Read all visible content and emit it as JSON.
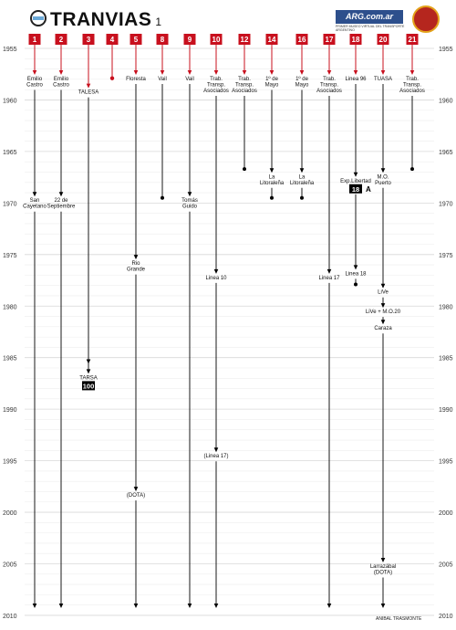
{
  "header": {
    "title": "TRANVIAS",
    "subtitle": "1",
    "brand_text": "ARG.com.ar",
    "brand_sub": "PRIMER MUSEO VIRTUAL DEL TRANSPORTE ARGENTINO",
    "logo_icon": "argentina-flag-roundel-icon",
    "seal_icon": "museum-seal-icon"
  },
  "footer": {
    "credit": "ANIBAL TRASMONTE"
  },
  "colors": {
    "badge": "#c8101e",
    "arrow": "#c8101e",
    "line": "#000000",
    "grid": "#d8d8d8"
  },
  "year_axis": {
    "start": 1955,
    "end": 2010,
    "labels": [
      "1955",
      "1960",
      "1965",
      "1970",
      "1975",
      "1980",
      "1985",
      "1990",
      "1995",
      "2000",
      "2005",
      "2010"
    ]
  },
  "lines": [
    {
      "id": "1",
      "events": [
        {
          "year": 1958.1,
          "text": "Emilio\nCastro"
        },
        {
          "year": 1969.9,
          "text": "San\nCayetano"
        }
      ],
      "end_year": 2009.3,
      "terminal": "arrow"
    },
    {
      "id": "2",
      "events": [
        {
          "year": 1958.1,
          "text": "Emilio\nCastro"
        },
        {
          "year": 1969.9,
          "text": "22 de\nSeptiembre"
        }
      ],
      "end_year": 2009.3,
      "terminal": "arrow"
    },
    {
      "id": "3",
      "events": [
        {
          "year": 1959.4,
          "text": "TALESA"
        },
        {
          "year": 1987.1,
          "text": "TARSA",
          "badge": "100"
        }
      ],
      "end_year": 1985.6,
      "terminal": "arrow"
    },
    {
      "id": "4",
      "events": [],
      "end_year": 1957.9,
      "terminal": "dot"
    },
    {
      "id": "5",
      "events": [
        {
          "year": 1958.1,
          "text": "Floresta"
        },
        {
          "year": 1976.0,
          "text": "Rio\nGrande"
        },
        {
          "year": 1998.5,
          "text": "(DOTA)"
        }
      ],
      "end_year": 2009.3,
      "terminal": "arrow"
    },
    {
      "id": "8",
      "events": [
        {
          "year": 1958.1,
          "text": "Vail"
        }
      ],
      "end_year": 1969.5,
      "terminal": "dot"
    },
    {
      "id": "9",
      "events": [
        {
          "year": 1958.1,
          "text": "Vail"
        },
        {
          "year": 1969.9,
          "text": "Tomás\nGuido"
        }
      ],
      "end_year": 2009.3,
      "terminal": "arrow"
    },
    {
      "id": "10",
      "events": [
        {
          "year": 1958.1,
          "text": "Trab.\nTransp.\nAsociados"
        },
        {
          "year": 1977.4,
          "text": "Linea 10"
        },
        {
          "year": 1994.7,
          "text": "(Linea 17)"
        }
      ],
      "end_year": 2009.3,
      "terminal": "arrow"
    },
    {
      "id": "12",
      "events": [
        {
          "year": 1958.1,
          "text": "Trab.\nTransp.\nAsociados"
        }
      ],
      "end_year": 1966.7,
      "terminal": "dot"
    },
    {
      "id": "14",
      "events": [
        {
          "year": 1958.1,
          "text": "1º de\nMayo"
        },
        {
          "year": 1967.6,
          "text": "La\nLitoraleña"
        }
      ],
      "end_year": 1969.5,
      "terminal": "dot"
    },
    {
      "id": "16",
      "events": [
        {
          "year": 1958.1,
          "text": "1º de\nMayo"
        },
        {
          "year": 1967.6,
          "text": "La\nLitoraleña"
        }
      ],
      "end_year": 1969.5,
      "terminal": "dot"
    },
    {
      "id": "17",
      "events": [
        {
          "year": 1958.1,
          "text": "Trab.\nTransp.\nAsociados"
        },
        {
          "year": 1977.4,
          "text": "Linea 17"
        }
      ],
      "end_year": 2009.3,
      "terminal": "arrow"
    },
    {
      "id": "18",
      "events": [
        {
          "year": 1958.1,
          "text": "Linea 96"
        },
        {
          "year": 1968.0,
          "text": "Exp.Libertad",
          "badge": "18",
          "badge_suffix": "A"
        },
        {
          "year": 1977.0,
          "text": "Linea 18"
        }
      ],
      "end_year": 1977.9,
      "terminal": "dot"
    },
    {
      "id": "20",
      "events": [
        {
          "year": 1958.1,
          "text": "TUASA"
        },
        {
          "year": 1967.6,
          "text": "M.O.\nPuerto"
        },
        {
          "year": 1978.8,
          "text": "LiVe"
        },
        {
          "year": 1980.7,
          "text": "LiVe + M.O.20"
        },
        {
          "year": 1982.3,
          "text": "Caraza"
        },
        {
          "year": 2005.4,
          "text": "Larrazábal\n(DOTA)"
        }
      ],
      "end_year": 2009.3,
      "terminal": "arrow"
    },
    {
      "id": "21",
      "events": [
        {
          "year": 1958.1,
          "text": "Trab.\nTransp.\nAsociados"
        }
      ],
      "end_year": 1966.7,
      "terminal": "dot"
    }
  ]
}
